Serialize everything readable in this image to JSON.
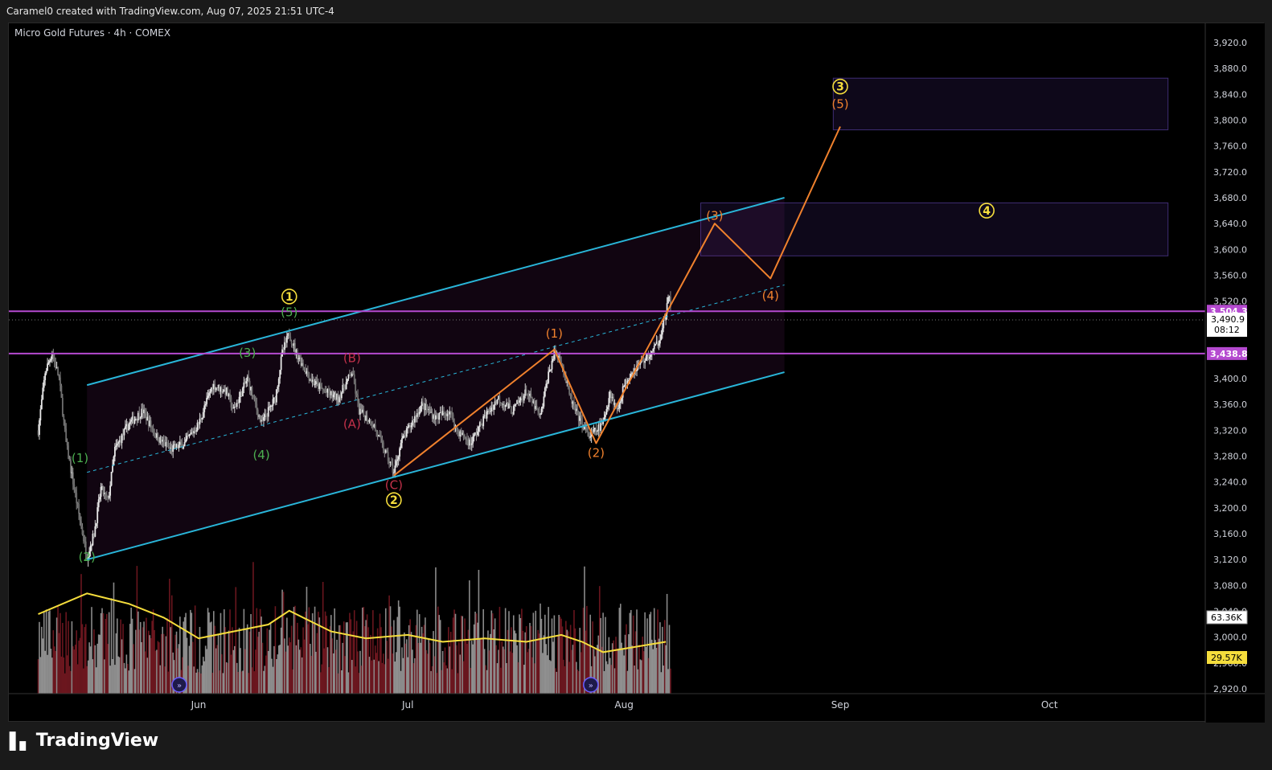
{
  "header": {
    "attribution": "Caramel0 created with TradingView.com, Aug 07, 2025 21:51 UTC-4",
    "symbol": "Micro Gold Futures · 4h · COMEX"
  },
  "footer": {
    "brand": "TradingView"
  },
  "colors": {
    "channel": "#29b6d9",
    "projection": "#f0812d",
    "resistance": "#b54ad0",
    "wave_green": "#4caf50",
    "wave_red": "#c2314a",
    "wave_orange": "#f0812d",
    "wave_yellow": "#f5dd3c",
    "volume_ma": "#f5dd3c"
  },
  "chart_data": {
    "type": "candlestick",
    "y_axis": {
      "range": [
        2900,
        3950
      ],
      "ticks": [
        "3,920.0",
        "3,880.0",
        "3,840.0",
        "3,800.0",
        "3,760.0",
        "3,720.0",
        "3,680.0",
        "3,640.0",
        "3,600.0",
        "3,560.0",
        "3,520.0",
        "3,400.0",
        "3,360.0",
        "3,320.0",
        "3,280.0",
        "3,240.0",
        "3,200.0",
        "3,160.0",
        "3,120.0",
        "3,080.0",
        "3,040.0",
        "3,000.0",
        "2,960.0",
        "2,920.0"
      ],
      "tick_values": [
        3920,
        3880,
        3840,
        3800,
        3760,
        3720,
        3680,
        3640,
        3600,
        3560,
        3520,
        3400,
        3360,
        3320,
        3280,
        3240,
        3200,
        3160,
        3120,
        3080,
        3040,
        3000,
        2960,
        2920
      ]
    },
    "x_axis": {
      "labels": [
        "Jun",
        "Jul",
        "Aug",
        "Sep",
        "Oct"
      ],
      "label_dates": [
        "2025-06-01",
        "2025-07-01",
        "2025-08-01",
        "2025-09-01",
        "2025-10-01"
      ]
    },
    "price_path": [
      {
        "date": "2025-05-09",
        "price": 3320
      },
      {
        "date": "2025-05-10",
        "price": 3410
      },
      {
        "date": "2025-05-11",
        "price": 3440
      },
      {
        "date": "2025-05-12",
        "price": 3400
      },
      {
        "date": "2025-05-13",
        "price": 3300
      },
      {
        "date": "2025-05-14",
        "price": 3240
      },
      {
        "date": "2025-05-15",
        "price": 3180
      },
      {
        "date": "2025-05-16",
        "price": 3125
      },
      {
        "date": "2025-05-17",
        "price": 3160
      },
      {
        "date": "2025-05-18",
        "price": 3230
      },
      {
        "date": "2025-05-19",
        "price": 3210
      },
      {
        "date": "2025-05-20",
        "price": 3290
      },
      {
        "date": "2025-05-22",
        "price": 3330
      },
      {
        "date": "2025-05-24",
        "price": 3350
      },
      {
        "date": "2025-05-26",
        "price": 3310
      },
      {
        "date": "2025-05-28",
        "price": 3290
      },
      {
        "date": "2025-05-30",
        "price": 3300
      },
      {
        "date": "2025-06-01",
        "price": 3330
      },
      {
        "date": "2025-06-03",
        "price": 3390
      },
      {
        "date": "2025-06-05",
        "price": 3380
      },
      {
        "date": "2025-06-06",
        "price": 3350
      },
      {
        "date": "2025-06-08",
        "price": 3400
      },
      {
        "date": "2025-06-10",
        "price": 3330
      },
      {
        "date": "2025-06-11",
        "price": 3350
      },
      {
        "date": "2025-06-12",
        "price": 3370
      },
      {
        "date": "2025-06-13",
        "price": 3440
      },
      {
        "date": "2025-06-14",
        "price": 3470
      },
      {
        "date": "2025-06-15",
        "price": 3440
      },
      {
        "date": "2025-06-17",
        "price": 3400
      },
      {
        "date": "2025-06-19",
        "price": 3380
      },
      {
        "date": "2025-06-21",
        "price": 3370
      },
      {
        "date": "2025-06-23",
        "price": 3410
      },
      {
        "date": "2025-06-24",
        "price": 3350
      },
      {
        "date": "2025-06-26",
        "price": 3330
      },
      {
        "date": "2025-06-28",
        "price": 3280
      },
      {
        "date": "2025-06-29",
        "price": 3255
      },
      {
        "date": "2025-06-30",
        "price": 3300
      },
      {
        "date": "2025-07-02",
        "price": 3340
      },
      {
        "date": "2025-07-03",
        "price": 3360
      },
      {
        "date": "2025-07-05",
        "price": 3340
      },
      {
        "date": "2025-07-07",
        "price": 3350
      },
      {
        "date": "2025-07-08",
        "price": 3320
      },
      {
        "date": "2025-07-10",
        "price": 3300
      },
      {
        "date": "2025-07-12",
        "price": 3340
      },
      {
        "date": "2025-07-14",
        "price": 3370
      },
      {
        "date": "2025-07-16",
        "price": 3350
      },
      {
        "date": "2025-07-18",
        "price": 3380
      },
      {
        "date": "2025-07-20",
        "price": 3340
      },
      {
        "date": "2025-07-21",
        "price": 3400
      },
      {
        "date": "2025-07-22",
        "price": 3440
      },
      {
        "date": "2025-07-23",
        "price": 3430
      },
      {
        "date": "2025-07-24",
        "price": 3380
      },
      {
        "date": "2025-07-25",
        "price": 3350
      },
      {
        "date": "2025-07-26",
        "price": 3330
      },
      {
        "date": "2025-07-27",
        "price": 3310
      },
      {
        "date": "2025-07-28",
        "price": 3320
      },
      {
        "date": "2025-07-29",
        "price": 3330
      },
      {
        "date": "2025-07-30",
        "price": 3380
      },
      {
        "date": "2025-07-31",
        "price": 3350
      },
      {
        "date": "2025-08-01",
        "price": 3390
      },
      {
        "date": "2025-08-02",
        "price": 3410
      },
      {
        "date": "2025-08-04",
        "price": 3430
      },
      {
        "date": "2025-08-05",
        "price": 3440
      },
      {
        "date": "2025-08-06",
        "price": 3460
      },
      {
        "date": "2025-08-07",
        "price": 3500
      },
      {
        "date": "2025-08-07T12:00",
        "price": 3530
      },
      {
        "date": "2025-08-07T20:00",
        "price": 3490.9
      }
    ],
    "volume_ma": [
      {
        "date": "2025-05-09",
        "value": 23
      },
      {
        "date": "2025-05-16",
        "value": 29
      },
      {
        "date": "2025-05-22",
        "value": 26
      },
      {
        "date": "2025-05-27",
        "value": 22
      },
      {
        "date": "2025-06-01",
        "value": 16
      },
      {
        "date": "2025-06-06",
        "value": 18
      },
      {
        "date": "2025-06-11",
        "value": 20
      },
      {
        "date": "2025-06-14",
        "value": 24
      },
      {
        "date": "2025-06-20",
        "value": 18
      },
      {
        "date": "2025-06-25",
        "value": 16
      },
      {
        "date": "2025-07-01",
        "value": 17
      },
      {
        "date": "2025-07-06",
        "value": 15
      },
      {
        "date": "2025-07-12",
        "value": 16
      },
      {
        "date": "2025-07-18",
        "value": 15
      },
      {
        "date": "2025-07-23",
        "value": 17
      },
      {
        "date": "2025-07-26",
        "value": 15
      },
      {
        "date": "2025-07-29",
        "value": 12
      },
      {
        "date": "2025-08-01",
        "value": 13
      },
      {
        "date": "2025-08-07",
        "value": 15
      }
    ],
    "volume_labels": {
      "current": "63.36K",
      "ma": "29.57K"
    },
    "horizontal_levels": [
      {
        "value": 3504.3,
        "label": "3,504.3"
      },
      {
        "value": 3438.8,
        "label": "3,438.8"
      }
    ],
    "last_price": {
      "value": 3490.9,
      "label": "3,490.9",
      "countdown": "08:12"
    },
    "channel": {
      "upper": [
        {
          "date": "2025-05-16",
          "price": 3390
        },
        {
          "date": "2025-08-24",
          "price": 3680
        }
      ],
      "lower": [
        {
          "date": "2025-05-16",
          "price": 3120
        },
        {
          "date": "2025-08-24",
          "price": 3410
        }
      ],
      "mid": [
        {
          "date": "2025-05-16",
          "price": 3255
        },
        {
          "date": "2025-08-24",
          "price": 3545
        }
      ]
    },
    "projection_path": [
      {
        "date": "2025-06-29",
        "price": 3250
      },
      {
        "date": "2025-07-22",
        "price": 3445
      },
      {
        "date": "2025-07-28",
        "price": 3300
      },
      {
        "date": "2025-08-07",
        "price": 3500
      },
      {
        "date": "2025-08-14",
        "price": 3640
      },
      {
        "date": "2025-08-22",
        "price": 3555
      },
      {
        "date": "2025-09-01",
        "price": 3790
      }
    ],
    "target_zones": [
      {
        "from": "2025-08-31",
        "to": "2025-10-18",
        "low": 3785,
        "high": 3865
      },
      {
        "from": "2025-08-12",
        "to": "2025-10-18",
        "low": 3590,
        "high": 3672
      }
    ],
    "wave_labels": [
      {
        "text": "(1)",
        "color": "green",
        "date": "2025-05-15",
        "price": 3277
      },
      {
        "text": "(2)",
        "color": "green",
        "date": "2025-05-16",
        "price": 3124
      },
      {
        "text": "(3)",
        "color": "green",
        "date": "2025-06-08",
        "price": 3440
      },
      {
        "text": "(4)",
        "color": "green",
        "date": "2025-06-10",
        "price": 3282
      },
      {
        "text": "(5)",
        "color": "green",
        "date": "2025-06-14",
        "price": 3503
      },
      {
        "text": "1",
        "color": "yellow",
        "circled": true,
        "date": "2025-06-14",
        "price": 3527
      },
      {
        "text": "(A)",
        "color": "red",
        "date": "2025-06-23",
        "price": 3330
      },
      {
        "text": "(B)",
        "color": "red",
        "date": "2025-06-23",
        "price": 3432
      },
      {
        "text": "(C)",
        "color": "red",
        "date": "2025-06-29",
        "price": 3235
      },
      {
        "text": "2",
        "color": "yellow",
        "circled": true,
        "date": "2025-06-29",
        "price": 3212
      },
      {
        "text": "(1)",
        "color": "orange",
        "date": "2025-07-22",
        "price": 3470
      },
      {
        "text": "(2)",
        "color": "orange",
        "date": "2025-07-28",
        "price": 3285
      },
      {
        "text": "(3)",
        "color": "orange",
        "date": "2025-08-14",
        "price": 3652
      },
      {
        "text": "(4)",
        "color": "orange",
        "date": "2025-08-22",
        "price": 3528
      },
      {
        "text": "(5)",
        "color": "orange",
        "date": "2025-09-01",
        "price": 3825
      },
      {
        "text": "3",
        "color": "yellow",
        "circled": true,
        "date": "2025-09-01",
        "price": 3852
      },
      {
        "text": "4",
        "color": "yellow",
        "circled": true,
        "date": "2025-09-22",
        "price": 3660
      }
    ]
  }
}
